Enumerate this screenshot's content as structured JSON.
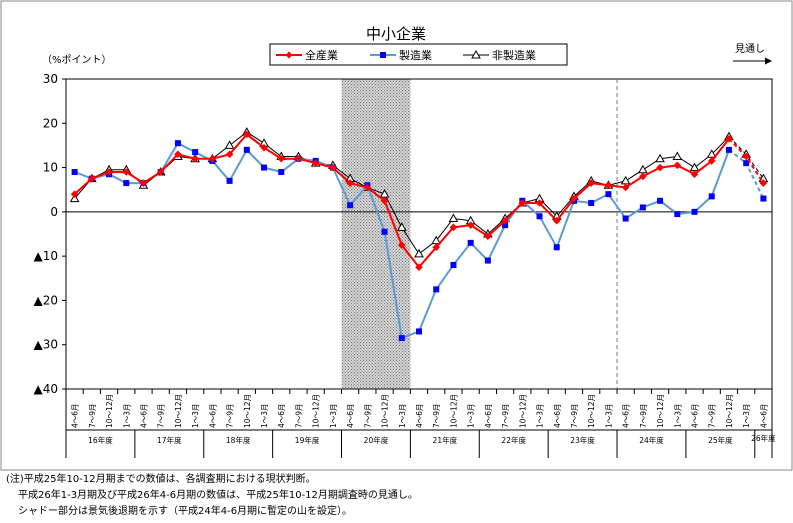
{
  "chart_data": {
    "type": "line",
    "title": "中小企業",
    "ylabel": "（%ポイント）",
    "ylim": [
      -40,
      30
    ],
    "yticks": [
      30,
      20,
      10,
      0,
      -10,
      -20,
      -30,
      -40
    ],
    "ytick_labels": [
      "30",
      "20",
      "10",
      "0",
      "▲10",
      "▲20",
      "▲30",
      "▲40"
    ],
    "outlook_label": "見通し",
    "categories": [
      "4～6月",
      "7～9月",
      "10～12月",
      "1～3月",
      "4～6月",
      "7～9月",
      "10～12月",
      "1～3月",
      "4～6月",
      "7～9月",
      "10～12月",
      "1～3月",
      "4～6月",
      "7～9月",
      "10～12月",
      "1～3月",
      "4～6月",
      "7～9月",
      "10～12月",
      "1～3月",
      "4～6月",
      "7～9月",
      "10～12月",
      "1～3月",
      "4～6月",
      "7～9月",
      "10～12月",
      "1～3月",
      "4～6月",
      "7～9月",
      "10～12月",
      "1～3月",
      "4～6月",
      "7～9月",
      "10～12月",
      "1～3月",
      "4～6月",
      "7～9月",
      "10～12月",
      "1～3月",
      "4～6月"
    ],
    "years": [
      {
        "label": "16年度",
        "start": 0,
        "count": 4
      },
      {
        "label": "17年度",
        "start": 4,
        "count": 4
      },
      {
        "label": "18年度",
        "start": 8,
        "count": 4
      },
      {
        "label": "19年度",
        "start": 12,
        "count": 4
      },
      {
        "label": "20年度",
        "start": 16,
        "count": 4
      },
      {
        "label": "21年度",
        "start": 20,
        "count": 4
      },
      {
        "label": "22年度",
        "start": 24,
        "count": 4
      },
      {
        "label": "23年度",
        "start": 28,
        "count": 4
      },
      {
        "label": "24年度",
        "start": 32,
        "count": 4
      },
      {
        "label": "25年度",
        "start": 36,
        "count": 4
      },
      {
        "label": "26年度",
        "start": 40,
        "count": 1
      }
    ],
    "shaded_range": [
      16,
      19
    ],
    "vline_after": 31,
    "projection_from": 38,
    "series": [
      {
        "name": "全産業",
        "color": "#ff0000",
        "marker": "diamond",
        "values": [
          4,
          7.5,
          9,
          9,
          6.5,
          9,
          13,
          12,
          12,
          13,
          17.5,
          14.5,
          12,
          12,
          11,
          10,
          6.5,
          5.5,
          2.5,
          -7.5,
          -12.5,
          -8,
          -3.5,
          -3,
          -5.5,
          -2,
          2,
          2,
          -2,
          3,
          6.5,
          6,
          5.5,
          8,
          10,
          10.5,
          8.5,
          11.5,
          16.5,
          12.5,
          6.5
        ]
      },
      {
        "name": "製造業",
        "color": "#5b9bd5",
        "marker": "square",
        "values": [
          9,
          7.5,
          8.5,
          6.5,
          6.5,
          9,
          15.5,
          13.5,
          11.5,
          7,
          14,
          10,
          9,
          12,
          11.5,
          10,
          1.5,
          6,
          -4.5,
          -28.5,
          -27,
          -17.5,
          -12,
          -7,
          -11,
          -3,
          2.5,
          -1,
          -8,
          2.5,
          2,
          4,
          -1.5,
          1,
          2.5,
          -0.5,
          0,
          3.5,
          14,
          11,
          3
        ]
      },
      {
        "name": "非製造業",
        "color": "#000000",
        "marker": "triangle",
        "values": [
          3,
          7.5,
          9.5,
          9.5,
          6,
          9,
          12.5,
          12,
          12,
          15,
          18,
          15.5,
          12.5,
          12.5,
          11,
          10.5,
          7.5,
          5.5,
          4,
          -3.5,
          -9.5,
          -6.5,
          -1.5,
          -2,
          -5,
          -1.5,
          2,
          3,
          -1,
          3.5,
          7,
          6,
          7,
          9.5,
          12,
          12.5,
          10,
          13,
          17,
          13,
          7.5
        ]
      }
    ]
  },
  "notes": [
    "(注)平成25年10-12月期までの数値は、各調査期における現状判断。",
    "平成26年1-3月期及び平成26年4-6月期の数値は、平成25年10-12月期調査時の見通し。",
    "シャドー部分は景気後退期を示す（平成24年4-6月期に暫定の山を設定）。"
  ]
}
